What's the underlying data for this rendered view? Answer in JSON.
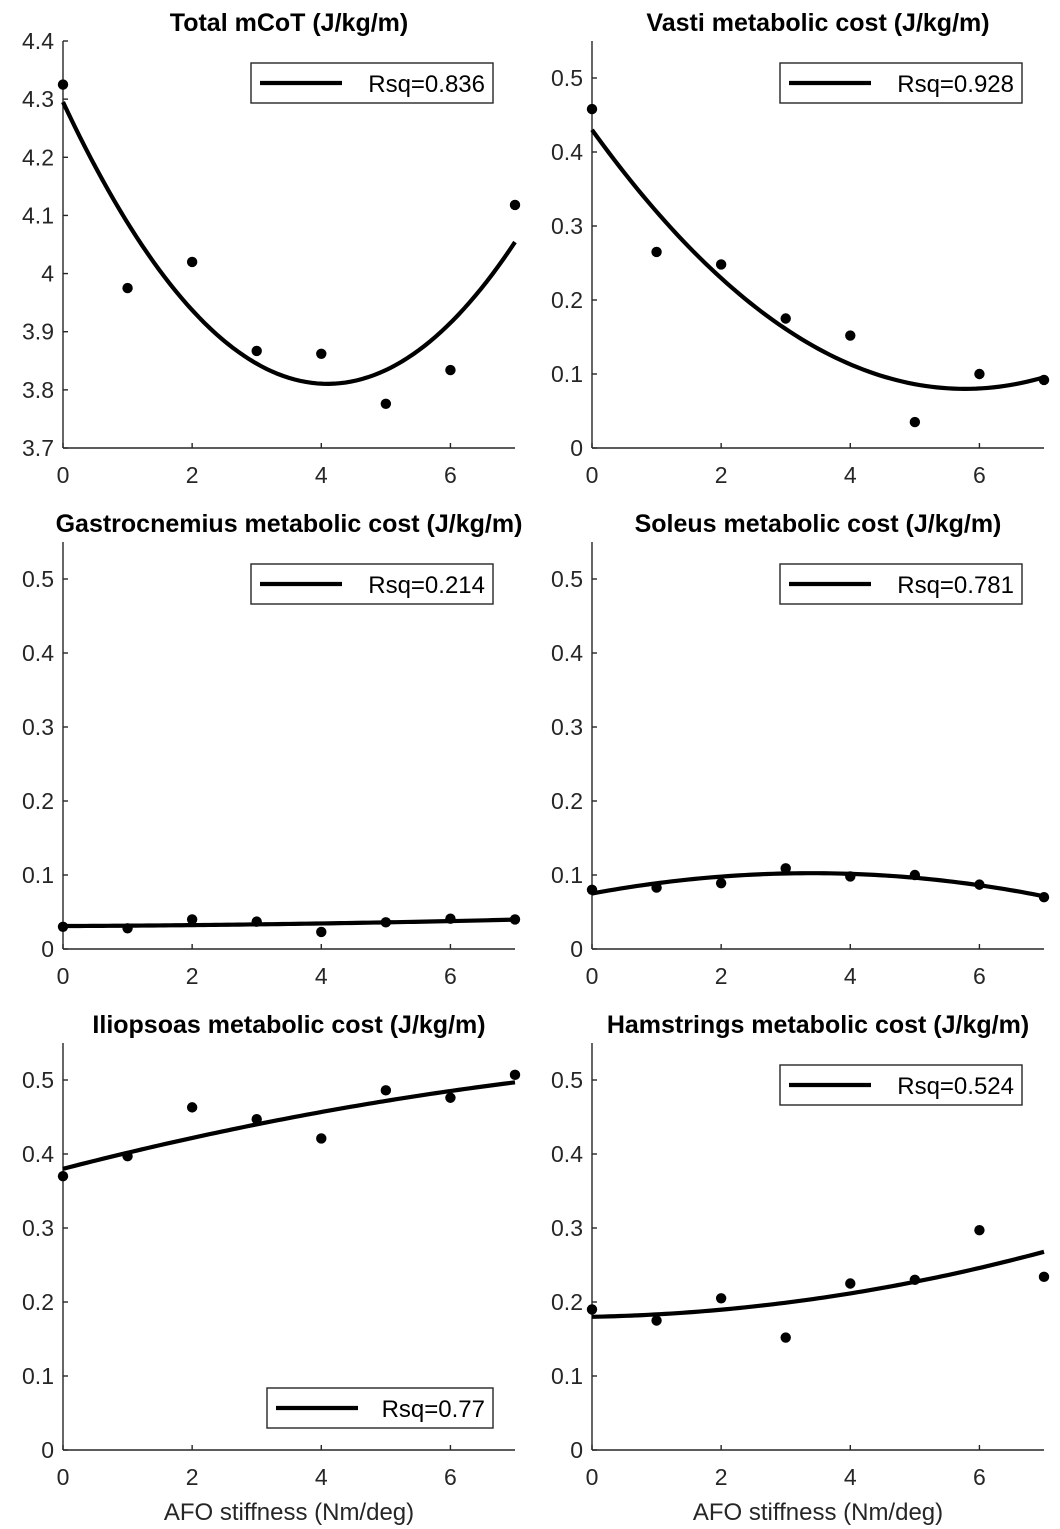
{
  "chart_data": [
    {
      "type": "scatter",
      "title": "Total mCoT (J/kg/m)",
      "xlabel": "",
      "xlim": [
        0,
        7
      ],
      "ylim": [
        3.7,
        4.4
      ],
      "xticks": [
        "0",
        "2",
        "4",
        "6"
      ],
      "yticks": [
        "3.7",
        "3.8",
        "3.9",
        "4",
        "4.1",
        "4.2",
        "4.3",
        "4.4"
      ],
      "x": [
        0,
        1,
        2,
        3,
        4,
        5,
        6,
        7
      ],
      "y": [
        4.325,
        3.975,
        4.02,
        3.867,
        3.862,
        3.776,
        3.834,
        4.118
      ],
      "fit": {
        "label": "Rsq=0.836",
        "coefficients": [
          4.295,
          -0.2367,
          0.0289
        ]
      },
      "legend": "top-right"
    },
    {
      "type": "scatter",
      "title": "Vasti metabolic cost (J/kg/m)",
      "xlabel": "",
      "xlim": [
        0,
        7
      ],
      "ylim": [
        0,
        0.55
      ],
      "xticks": [
        "0",
        "2",
        "4",
        "6"
      ],
      "yticks": [
        "0",
        "0.1",
        "0.2",
        "0.3",
        "0.4",
        "0.5"
      ],
      "x": [
        0,
        1,
        2,
        3,
        4,
        5,
        6,
        7
      ],
      "y": [
        0.458,
        0.265,
        0.248,
        0.175,
        0.152,
        0.035,
        0.1,
        0.092
      ],
      "fit": {
        "label": "Rsq=0.928",
        "coefficients": [
          0.43,
          -0.1212,
          0.01049
        ]
      },
      "legend": "top-right"
    },
    {
      "type": "scatter",
      "title": "Gastrocnemius metabolic cost (J/kg/m)",
      "xlabel": "",
      "xlim": [
        0,
        7
      ],
      "ylim": [
        0,
        0.55
      ],
      "xticks": [
        "0",
        "2",
        "4",
        "6"
      ],
      "yticks": [
        "0",
        "0.1",
        "0.2",
        "0.3",
        "0.4",
        "0.5"
      ],
      "x": [
        0,
        1,
        2,
        3,
        4,
        5,
        6,
        7
      ],
      "y": [
        0.03,
        0.028,
        0.04,
        0.037,
        0.023,
        0.036,
        0.041,
        0.04
      ],
      "fit": {
        "label": "Rsq=0.214",
        "coefficients": [
          0.031,
          0.0004,
          0.00012
        ]
      },
      "legend": "top-right"
    },
    {
      "type": "scatter",
      "title": "Soleus metabolic cost (J/kg/m)",
      "xlabel": "",
      "xlim": [
        0,
        7
      ],
      "ylim": [
        0,
        0.55
      ],
      "xticks": [
        "0",
        "2",
        "4",
        "6"
      ],
      "yticks": [
        "0",
        "0.1",
        "0.2",
        "0.3",
        "0.4",
        "0.5"
      ],
      "x": [
        0,
        1,
        2,
        3,
        4,
        5,
        6,
        7
      ],
      "y": [
        0.08,
        0.083,
        0.089,
        0.109,
        0.098,
        0.1,
        0.087,
        0.07
      ],
      "fit": {
        "label": "Rsq=0.781",
        "coefficients": [
          0.075,
          0.0162,
          -0.00239
        ]
      },
      "legend": "top-right"
    },
    {
      "type": "scatter",
      "title": "Iliopsoas metabolic cost (J/kg/m)",
      "xlabel": "AFO stiffness (Nm/deg)",
      "xlim": [
        0,
        7
      ],
      "ylim": [
        0,
        0.55
      ],
      "xticks": [
        "0",
        "2",
        "4",
        "6"
      ],
      "yticks": [
        "0",
        "0.1",
        "0.2",
        "0.3",
        "0.4",
        "0.5"
      ],
      "x": [
        0,
        1,
        2,
        3,
        4,
        5,
        6,
        7
      ],
      "y": [
        0.37,
        0.397,
        0.463,
        0.447,
        0.421,
        0.486,
        0.476,
        0.507
      ],
      "fit": {
        "label": "Rsq=0.77",
        "coefficients": [
          0.38,
          0.0225,
          -0.00083
        ]
      },
      "legend": "bottom-right"
    },
    {
      "type": "scatter",
      "title": "Hamstrings metabolic cost (J/kg/m)",
      "xlabel": "AFO stiffness (Nm/deg)",
      "xlim": [
        0,
        7
      ],
      "ylim": [
        0,
        0.55
      ],
      "xticks": [
        "0",
        "2",
        "4",
        "6"
      ],
      "yticks": [
        "0",
        "0.1",
        "0.2",
        "0.3",
        "0.4",
        "0.5"
      ],
      "x": [
        0,
        1,
        2,
        3,
        4,
        5,
        6,
        7
      ],
      "y": [
        0.19,
        0.175,
        0.205,
        0.152,
        0.225,
        0.23,
        0.297,
        0.234
      ],
      "fit": {
        "label": "Rsq=0.524",
        "coefficients": [
          0.18,
          0.0017,
          0.00155
        ]
      },
      "legend": "top-right"
    }
  ]
}
